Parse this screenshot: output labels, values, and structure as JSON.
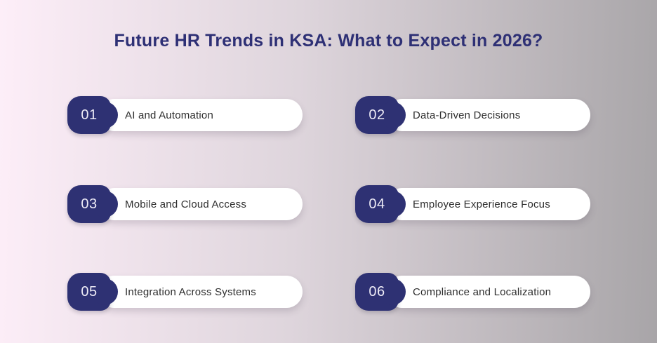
{
  "title": "Future HR Trends in KSA: What to Expect in 2026?",
  "items": [
    {
      "number": "01",
      "label": "AI and Automation"
    },
    {
      "number": "02",
      "label": "Data-Driven Decisions"
    },
    {
      "number": "03",
      "label": "Mobile and Cloud Access"
    },
    {
      "number": "04",
      "label": "Employee Experience Focus"
    },
    {
      "number": "05",
      "label": "Integration Across Systems"
    },
    {
      "number": "06",
      "label": "Compliance and Localization"
    }
  ],
  "colors": {
    "accent_navy": "#2e3173",
    "title_navy": "#2e3075",
    "background_left": "#fdeef8",
    "background_right": "#a8a5a8",
    "pill_background": "#ffffff",
    "pill_text": "#2e2e2e",
    "badge_number_text": "#edebf6"
  }
}
